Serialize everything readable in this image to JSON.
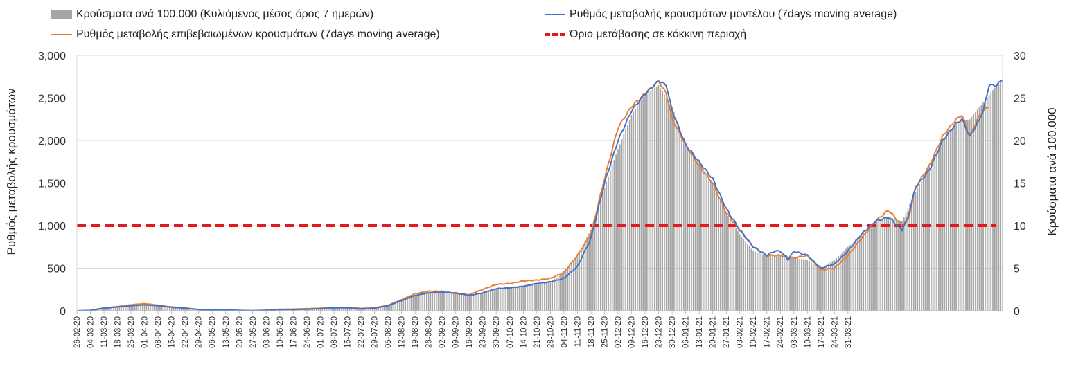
{
  "chart_data": {
    "type": "bar+line",
    "xlabels": [
      "26-02-20",
      "04-03-20",
      "11-03-20",
      "18-03-20",
      "25-03-20",
      "01-04-20",
      "08-04-20",
      "15-04-20",
      "22-04-20",
      "29-04-20",
      "06-05-20",
      "13-05-20",
      "20-05-20",
      "27-05-20",
      "03-06-20",
      "10-06-20",
      "17-06-20",
      "24-06-20",
      "01-07-20",
      "08-07-20",
      "15-07-20",
      "22-07-20",
      "29-07-20",
      "05-08-20",
      "12-08-20",
      "19-08-20",
      "26-08-20",
      "02-09-20",
      "09-09-20",
      "16-09-20",
      "23-09-20",
      "30-09-20",
      "07-10-20",
      "14-10-20",
      "21-10-20",
      "28-10-20",
      "04-11-20",
      "11-11-20",
      "18-11-20",
      "25-11-20",
      "02-12-20",
      "09-12-20",
      "16-12-20",
      "23-12-20",
      "30-12-20",
      "06-01-21",
      "13-01-21",
      "20-01-21",
      "27-01-21",
      "03-02-21",
      "10-02-21",
      "17-02-21",
      "24-02-21",
      "03-03-21",
      "10-03-21",
      "17-03-21",
      "24-03-21",
      "31-03-21"
    ],
    "y_left": {
      "label": "Ρυθμός μεταβολής κρουσμάτων",
      "min": 0,
      "max": 3000,
      "ticks": [
        "0",
        "500",
        "1,000",
        "1,500",
        "2,000",
        "2,500",
        "3,000"
      ]
    },
    "y_right": {
      "label": "Κρούσματα ανά 100.000",
      "min": 0,
      "max": 30,
      "ticks": [
        "0",
        "5",
        "10",
        "15",
        "20",
        "25",
        "30"
      ]
    },
    "series": [
      {
        "name": "Κρούσματα ανά 100.000 (Κυλιόμενος μέσος όρος 7 ημερών)",
        "kind": "bar",
        "axis": "right",
        "color": "#a6a6a6",
        "anchors": [
          [
            0,
            0
          ],
          [
            7,
            0.05
          ],
          [
            14,
            0.35
          ],
          [
            21,
            0.5
          ],
          [
            28,
            0.7
          ],
          [
            35,
            0.8
          ],
          [
            42,
            0.55
          ],
          [
            49,
            0.4
          ],
          [
            56,
            0.35
          ],
          [
            63,
            0.2
          ],
          [
            70,
            0.1
          ],
          [
            77,
            0.1
          ],
          [
            84,
            0.05
          ],
          [
            91,
            0.02
          ],
          [
            98,
            0.05
          ],
          [
            105,
            0.15
          ],
          [
            112,
            0.15
          ],
          [
            119,
            0.2
          ],
          [
            126,
            0.25
          ],
          [
            133,
            0.35
          ],
          [
            140,
            0.35
          ],
          [
            147,
            0.25
          ],
          [
            154,
            0.3
          ],
          [
            161,
            0.6
          ],
          [
            168,
            1.2
          ],
          [
            175,
            1.8
          ],
          [
            182,
            2.1
          ],
          [
            189,
            2.2
          ],
          [
            196,
            2.1
          ],
          [
            203,
            1.9
          ],
          [
            210,
            2.1
          ],
          [
            217,
            2.6
          ],
          [
            224,
            2.8
          ],
          [
            231,
            3.0
          ],
          [
            238,
            3.3
          ],
          [
            245,
            3.5
          ],
          [
            252,
            4.5
          ],
          [
            259,
            6.5
          ],
          [
            266,
            9.5
          ],
          [
            273,
            14.5
          ],
          [
            280,
            19.0
          ],
          [
            287,
            23.0
          ],
          [
            294,
            25.5
          ],
          [
            301,
            26.5
          ],
          [
            308,
            24.0
          ],
          [
            315,
            19.5
          ],
          [
            322,
            17.5
          ],
          [
            329,
            15.0
          ],
          [
            336,
            11.5
          ],
          [
            343,
            9.0
          ],
          [
            350,
            7.0
          ],
          [
            357,
            6.5
          ],
          [
            364,
            6.5
          ],
          [
            371,
            6.2
          ],
          [
            378,
            6.0
          ],
          [
            385,
            5.0
          ],
          [
            392,
            6.0
          ],
          [
            399,
            7.5
          ],
          [
            406,
            9.0
          ],
          [
            413,
            10.5
          ],
          [
            420,
            11.0
          ],
          [
            427,
            10.5
          ],
          [
            434,
            14.0
          ],
          [
            441,
            17.0
          ],
          [
            448,
            20.0
          ],
          [
            455,
            22.0
          ],
          [
            462,
            22.5
          ],
          [
            469,
            24.5
          ],
          [
            476,
            26.5
          ],
          [
            479,
            27.2
          ]
        ]
      },
      {
        "name": "Ρυθμός μεταβολής κρουσμάτων μοντέλου (7days moving average)",
        "kind": "line",
        "axis": "left",
        "color": "#4472c4",
        "anchors": [
          [
            0,
            0
          ],
          [
            7,
            5
          ],
          [
            14,
            30
          ],
          [
            21,
            45
          ],
          [
            28,
            60
          ],
          [
            35,
            70
          ],
          [
            42,
            60
          ],
          [
            49,
            40
          ],
          [
            56,
            30
          ],
          [
            63,
            15
          ],
          [
            70,
            10
          ],
          [
            77,
            10
          ],
          [
            84,
            5
          ],
          [
            91,
            2
          ],
          [
            98,
            5
          ],
          [
            105,
            15
          ],
          [
            112,
            15
          ],
          [
            119,
            20
          ],
          [
            126,
            25
          ],
          [
            133,
            35
          ],
          [
            140,
            35
          ],
          [
            147,
            25
          ],
          [
            154,
            30
          ],
          [
            161,
            60
          ],
          [
            168,
            120
          ],
          [
            175,
            180
          ],
          [
            182,
            210
          ],
          [
            189,
            220
          ],
          [
            196,
            210
          ],
          [
            203,
            180
          ],
          [
            210,
            210
          ],
          [
            217,
            260
          ],
          [
            224,
            270
          ],
          [
            231,
            285
          ],
          [
            238,
            320
          ],
          [
            245,
            340
          ],
          [
            252,
            380
          ],
          [
            259,
            520
          ],
          [
            266,
            850
          ],
          [
            273,
            1500
          ],
          [
            280,
            2000
          ],
          [
            287,
            2350
          ],
          [
            294,
            2550
          ],
          [
            301,
            2700
          ],
          [
            305,
            2650
          ],
          [
            308,
            2350
          ],
          [
            315,
            1950
          ],
          [
            322,
            1750
          ],
          [
            329,
            1550
          ],
          [
            336,
            1200
          ],
          [
            343,
            950
          ],
          [
            350,
            750
          ],
          [
            357,
            650
          ],
          [
            361,
            700
          ],
          [
            364,
            700
          ],
          [
            368,
            600
          ],
          [
            371,
            700
          ],
          [
            378,
            650
          ],
          [
            385,
            500
          ],
          [
            392,
            550
          ],
          [
            399,
            700
          ],
          [
            406,
            900
          ],
          [
            413,
            1050
          ],
          [
            420,
            1100
          ],
          [
            427,
            950
          ],
          [
            430,
            1100
          ],
          [
            434,
            1450
          ],
          [
            441,
            1650
          ],
          [
            448,
            2000
          ],
          [
            455,
            2200
          ],
          [
            458,
            2250
          ],
          [
            462,
            2050
          ],
          [
            466,
            2200
          ],
          [
            469,
            2350
          ],
          [
            472,
            2650
          ],
          [
            476,
            2650
          ],
          [
            479,
            2720
          ]
        ]
      },
      {
        "name": "Ρυθμός μεταβολής επιβεβαιωμένων κρουσμάτων (7days moving average)",
        "kind": "line",
        "axis": "left",
        "color": "#ed7d31",
        "anchors": [
          [
            0,
            0
          ],
          [
            7,
            5
          ],
          [
            14,
            35
          ],
          [
            21,
            50
          ],
          [
            28,
            70
          ],
          [
            35,
            85
          ],
          [
            42,
            65
          ],
          [
            49,
            45
          ],
          [
            56,
            35
          ],
          [
            63,
            15
          ],
          [
            70,
            12
          ],
          [
            77,
            10
          ],
          [
            84,
            5
          ],
          [
            91,
            2
          ],
          [
            98,
            8
          ],
          [
            105,
            18
          ],
          [
            112,
            20
          ],
          [
            119,
            25
          ],
          [
            126,
            30
          ],
          [
            133,
            40
          ],
          [
            140,
            40
          ],
          [
            147,
            28
          ],
          [
            154,
            35
          ],
          [
            161,
            65
          ],
          [
            168,
            130
          ],
          [
            175,
            200
          ],
          [
            182,
            230
          ],
          [
            189,
            230
          ],
          [
            196,
            200
          ],
          [
            203,
            190
          ],
          [
            210,
            250
          ],
          [
            217,
            310
          ],
          [
            224,
            320
          ],
          [
            231,
            350
          ],
          [
            238,
            360
          ],
          [
            245,
            380
          ],
          [
            252,
            450
          ],
          [
            259,
            650
          ],
          [
            266,
            900
          ],
          [
            273,
            1550
          ],
          [
            280,
            2150
          ],
          [
            287,
            2400
          ],
          [
            294,
            2550
          ],
          [
            301,
            2700
          ],
          [
            305,
            2550
          ],
          [
            308,
            2250
          ],
          [
            315,
            1950
          ],
          [
            322,
            1700
          ],
          [
            329,
            1500
          ],
          [
            336,
            1150
          ],
          [
            343,
            950
          ],
          [
            350,
            750
          ],
          [
            357,
            650
          ],
          [
            364,
            650
          ],
          [
            371,
            620
          ],
          [
            378,
            650
          ],
          [
            385,
            480
          ],
          [
            392,
            500
          ],
          [
            399,
            650
          ],
          [
            406,
            850
          ],
          [
            413,
            1050
          ],
          [
            420,
            1180
          ],
          [
            427,
            1000
          ],
          [
            430,
            1050
          ],
          [
            434,
            1450
          ],
          [
            441,
            1700
          ],
          [
            448,
            2050
          ],
          [
            455,
            2250
          ],
          [
            458,
            2300
          ],
          [
            462,
            2050
          ],
          [
            466,
            2250
          ],
          [
            469,
            2350
          ],
          [
            472,
            2400
          ]
        ]
      },
      {
        "name": "Όριο μετάβασης σε κόκκινη περιοχή",
        "kind": "threshold",
        "axis": "left",
        "color": "#e31a1c",
        "value": 1000
      }
    ]
  }
}
